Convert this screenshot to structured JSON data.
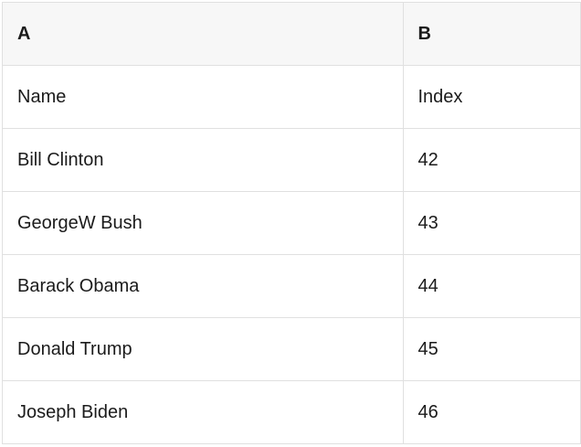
{
  "table": {
    "column_headers": {
      "a": "A",
      "b": "B"
    },
    "rows": [
      {
        "a": "Name",
        "b": "Index"
      },
      {
        "a": "Bill Clinton",
        "b": "42"
      },
      {
        "a": "GeorgeW Bush",
        "b": "43"
      },
      {
        "a": "Barack Obama",
        "b": "44"
      },
      {
        "a": "Donald Trump",
        "b": "45"
      },
      {
        "a": "Joseph Biden",
        "b": "46"
      }
    ]
  },
  "colors": {
    "header_bg": "#f7f7f7",
    "grid_border": "#e0e0e0",
    "text": "#1b1b1b",
    "cell_bg": "#ffffff"
  }
}
